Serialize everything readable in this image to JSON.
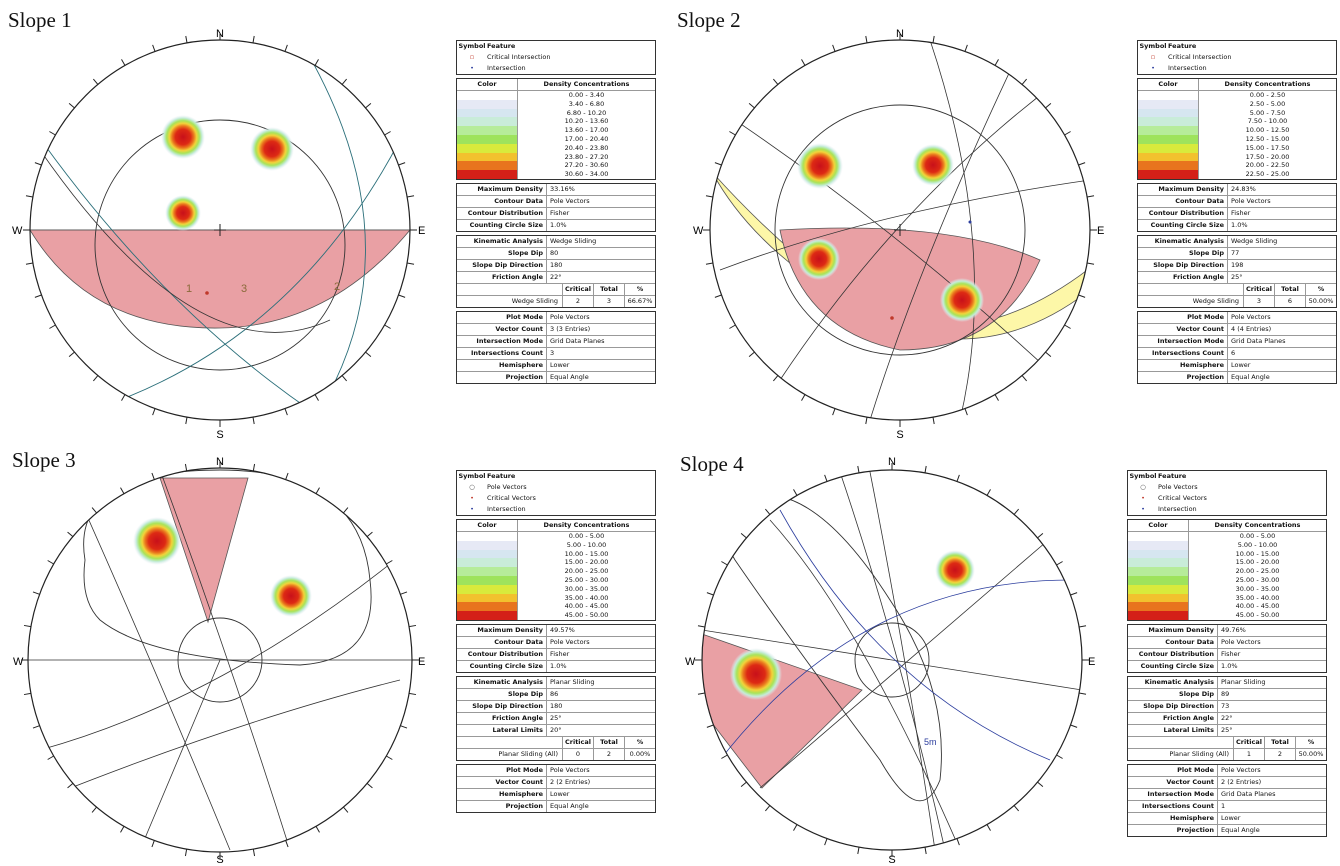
{
  "panels": [
    {
      "title": "Slope 1",
      "compass": {
        "n": "N",
        "s": "S",
        "e": "E",
        "w": "W"
      },
      "set_labels": [
        "1",
        "3",
        "2"
      ],
      "legend": {
        "header_symbol": "Symbol",
        "header_feature": "Feature",
        "items": [
          {
            "sym": "▫",
            "color": "#c0392b",
            "label": "Critical Intersection"
          },
          {
            "sym": "•",
            "color": "#2c3e9e",
            "label": "Intersection"
          }
        ]
      },
      "density": {
        "header_color": "Color",
        "header_conc": "Density Concentrations",
        "ranges": [
          "0.00 - 3.40",
          "3.40 - 6.80",
          "6.80 - 10.20",
          "10.20 - 13.60",
          "13.60 - 17.00",
          "17.00 - 20.40",
          "20.40 - 23.80",
          "23.80 - 27.20",
          "27.20 - 30.60",
          "30.60 - 34.00"
        ]
      },
      "info": [
        [
          "Maximum Density",
          "33.16%"
        ],
        [
          "Contour Data",
          "Pole Vectors"
        ],
        [
          "Contour Distribution",
          "Fisher"
        ],
        [
          "Counting Circle Size",
          "1.0%"
        ]
      ],
      "kin": [
        [
          "Kinematic Analysis",
          "Wedge Sliding"
        ],
        [
          "Slope Dip",
          "80"
        ],
        [
          "Slope Dip Direction",
          "180"
        ],
        [
          "Friction Angle",
          "22°"
        ]
      ],
      "count": {
        "h": [
          "Critical",
          "Total",
          "%"
        ],
        "label": "Wedge Sliding",
        "vals": [
          "2",
          "3",
          "66.67%"
        ]
      },
      "plot": [
        [
          "Plot Mode",
          "Pole Vectors"
        ],
        [
          "Vector Count",
          "3 (3 Entries)"
        ],
        [
          "Intersection Mode",
          "Grid Data Planes"
        ],
        [
          "Intersections Count",
          "3"
        ],
        [
          "Hemisphere",
          "Lower"
        ],
        [
          "Projection",
          "Equal Angle"
        ]
      ]
    },
    {
      "title": "Slope 2",
      "compass": {
        "n": "N",
        "s": "S",
        "e": "E",
        "w": "W"
      },
      "set_labels": [],
      "legend": {
        "header_symbol": "Symbol",
        "header_feature": "Feature",
        "items": [
          {
            "sym": "▫",
            "color": "#c0392b",
            "label": "Critical Intersection"
          },
          {
            "sym": "•",
            "color": "#2c3e9e",
            "label": "Intersection"
          }
        ]
      },
      "density": {
        "header_color": "Color",
        "header_conc": "Density Concentrations",
        "ranges": [
          "0.00 - 2.50",
          "2.50 - 5.00",
          "5.00 - 7.50",
          "7.50 - 10.00",
          "10.00 - 12.50",
          "12.50 - 15.00",
          "15.00 - 17.50",
          "17.50 - 20.00",
          "20.00 - 22.50",
          "22.50 - 25.00"
        ]
      },
      "info": [
        [
          "Maximum Density",
          "24.83%"
        ],
        [
          "Contour Data",
          "Pole Vectors"
        ],
        [
          "Contour Distribution",
          "Fisher"
        ],
        [
          "Counting Circle Size",
          "1.0%"
        ]
      ],
      "kin": [
        [
          "Kinematic Analysis",
          "Wedge Sliding"
        ],
        [
          "Slope Dip",
          "77"
        ],
        [
          "Slope Dip Direction",
          "198"
        ],
        [
          "Friction Angle",
          "25°"
        ]
      ],
      "count": {
        "h": [
          "Critical",
          "Total",
          "%"
        ],
        "label": "Wedge Sliding",
        "vals": [
          "3",
          "6",
          "50.00%"
        ]
      },
      "plot": [
        [
          "Plot Mode",
          "Pole Vectors"
        ],
        [
          "Vector Count",
          "4 (4 Entries)"
        ],
        [
          "Intersection Mode",
          "Grid Data Planes"
        ],
        [
          "Intersections Count",
          "6"
        ],
        [
          "Hemisphere",
          "Lower"
        ],
        [
          "Projection",
          "Equal Angle"
        ]
      ]
    },
    {
      "title": "Slope 3",
      "compass": {
        "n": "N",
        "s": "S",
        "e": "E",
        "w": "W"
      },
      "set_labels": [],
      "legend": {
        "header_symbol": "Symbol",
        "header_feature": "Feature",
        "items": [
          {
            "sym": "○",
            "color": "#444",
            "label": "Pole Vectors"
          },
          {
            "sym": "•",
            "color": "#c0392b",
            "label": "Critical Vectors"
          },
          {
            "sym": "•",
            "color": "#2c3e9e",
            "label": "Intersection"
          }
        ]
      },
      "density": {
        "header_color": "Color",
        "header_conc": "Density Concentrations",
        "ranges": [
          "0.00 - 5.00",
          "5.00 - 10.00",
          "10.00 - 15.00",
          "15.00 - 20.00",
          "20.00 - 25.00",
          "25.00 - 30.00",
          "30.00 - 35.00",
          "35.00 - 40.00",
          "40.00 - 45.00",
          "45.00 - 50.00"
        ]
      },
      "info": [
        [
          "Maximum Density",
          "49.57%"
        ],
        [
          "Contour Data",
          "Pole Vectors"
        ],
        [
          "Contour Distribution",
          "Fisher"
        ],
        [
          "Counting Circle Size",
          "1.0%"
        ]
      ],
      "kin": [
        [
          "Kinematic Analysis",
          "Planar Sliding"
        ],
        [
          "Slope Dip",
          "86"
        ],
        [
          "Slope Dip Direction",
          "180"
        ],
        [
          "Friction Angle",
          "25°"
        ],
        [
          "Lateral Limits",
          "20°"
        ]
      ],
      "count": {
        "h": [
          "Critical",
          "Total",
          "%"
        ],
        "label": "Planar Sliding (All)",
        "vals": [
          "0",
          "2",
          "0.00%"
        ]
      },
      "plot": [
        [
          "Plot Mode",
          "Pole Vectors"
        ],
        [
          "Vector Count",
          "2 (2 Entries)"
        ],
        [
          "Hemisphere",
          "Lower"
        ],
        [
          "Projection",
          "Equal Angle"
        ]
      ]
    },
    {
      "title": "Slope 4",
      "compass": {
        "n": "N",
        "s": "S",
        "e": "E",
        "w": "W"
      },
      "set_labels": [
        "5m"
      ],
      "legend": {
        "header_symbol": "Symbol",
        "header_feature": "Feature",
        "items": [
          {
            "sym": "○",
            "color": "#444",
            "label": "Pole Vectors"
          },
          {
            "sym": "•",
            "color": "#c0392b",
            "label": "Critical Vectors"
          },
          {
            "sym": "•",
            "color": "#2c3e9e",
            "label": "Intersection"
          }
        ]
      },
      "density": {
        "header_color": "Color",
        "header_conc": "Density Concentrations",
        "ranges": [
          "0.00 - 5.00",
          "5.00 - 10.00",
          "10.00 - 15.00",
          "15.00 - 20.00",
          "20.00 - 25.00",
          "25.00 - 30.00",
          "30.00 - 35.00",
          "35.00 - 40.00",
          "40.00 - 45.00",
          "45.00 - 50.00"
        ]
      },
      "info": [
        [
          "Maximum Density",
          "49.76%"
        ],
        [
          "Contour Data",
          "Pole Vectors"
        ],
        [
          "Contour Distribution",
          "Fisher"
        ],
        [
          "Counting Circle Size",
          "1.0%"
        ]
      ],
      "kin": [
        [
          "Kinematic Analysis",
          "Planar Sliding"
        ],
        [
          "Slope Dip",
          "89"
        ],
        [
          "Slope Dip Direction",
          "73"
        ],
        [
          "Friction Angle",
          "22°"
        ],
        [
          "Lateral Limits",
          "25°"
        ]
      ],
      "count": {
        "h": [
          "Critical",
          "Total",
          "%"
        ],
        "label": "Planar Sliding (All)",
        "vals": [
          "1",
          "2",
          "50.00%"
        ]
      },
      "plot": [
        [
          "Plot Mode",
          "Pole Vectors"
        ],
        [
          "Vector Count",
          "2 (2 Entries)"
        ],
        [
          "Intersection Mode",
          "Grid Data Planes"
        ],
        [
          "Intersections Count",
          "1"
        ],
        [
          "Hemisphere",
          "Lower"
        ],
        [
          "Projection",
          "Equal Angle"
        ]
      ]
    }
  ],
  "density_colors": [
    "#ffffff",
    "#e6e9f5",
    "#d6e6f0",
    "#c9ecd9",
    "#b6ec9a",
    "#9ee35c",
    "#d8ea3c",
    "#f2c12e",
    "#e8741e",
    "#d42018"
  ]
}
